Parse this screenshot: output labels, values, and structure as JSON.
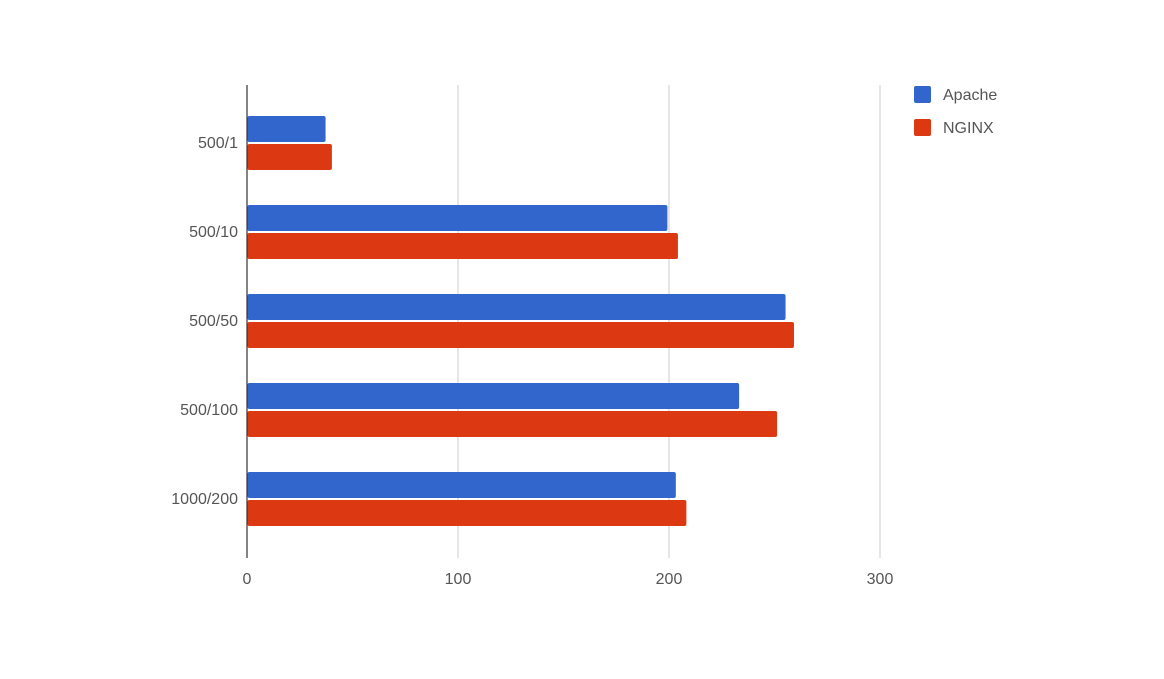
{
  "chart_data": {
    "type": "bar",
    "orientation": "horizontal",
    "categories": [
      "500/1",
      "500/10",
      "500/50",
      "500/100",
      "1000/200"
    ],
    "series": [
      {
        "name": "Apache",
        "color": "#3366cc",
        "values": [
          37,
          199,
          255,
          233,
          203
        ]
      },
      {
        "name": "NGINX",
        "color": "#dc3912",
        "values": [
          40,
          204,
          259,
          251,
          208
        ]
      }
    ],
    "x_ticks": [
      "0",
      "100",
      "200",
      "300"
    ],
    "xlim": [
      0,
      300
    ],
    "grid": true,
    "legend_position": "right"
  }
}
